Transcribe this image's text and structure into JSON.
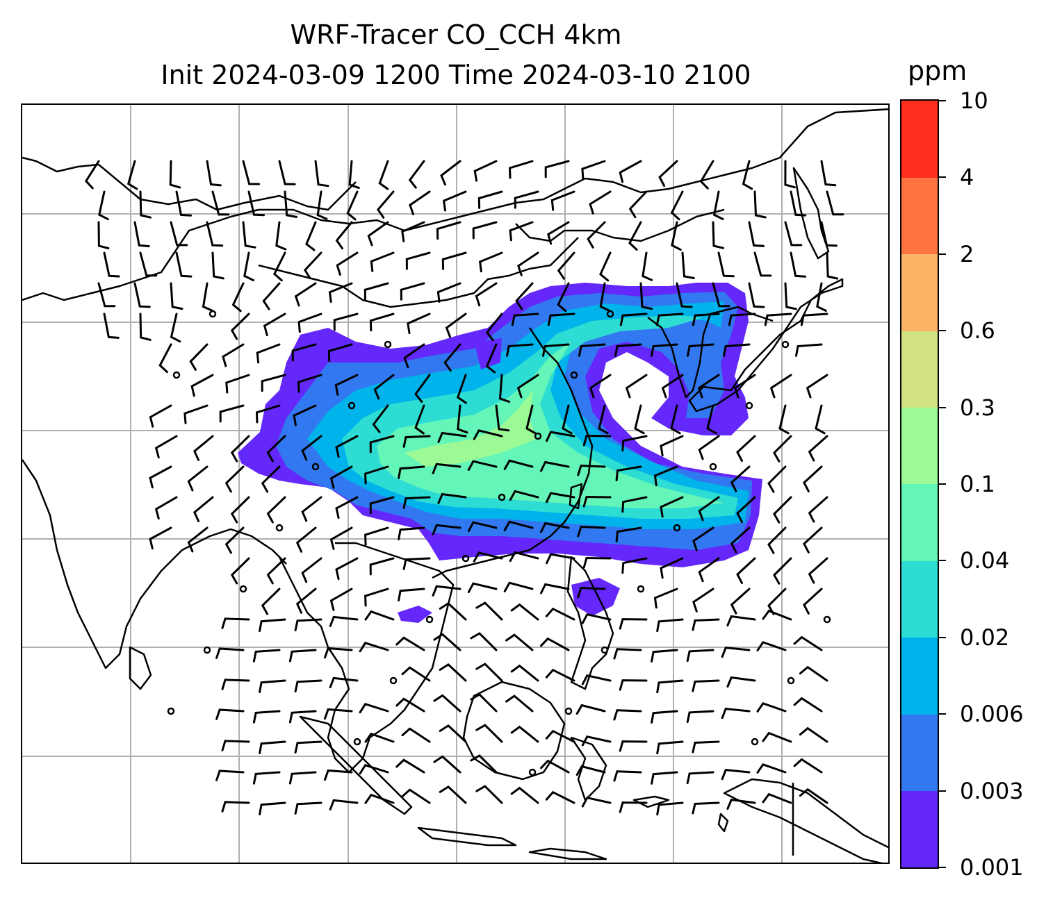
{
  "title": {
    "line1": "WRF-Tracer CO_CCH 4km",
    "line2": "Init 2024-03-09 1200 Time 2024-03-10 2100"
  },
  "colorbar": {
    "unit": "ppm",
    "levels": [
      "0.001",
      "0.003",
      "0.006",
      "0.02",
      "0.04",
      "0.1",
      "0.3",
      "0.6",
      "2",
      "4",
      "10"
    ],
    "colors": [
      "#6428fa",
      "#3278f0",
      "#00b4eb",
      "#2ddcd2",
      "#64f5b9",
      "#9bfa96",
      "#d2e182",
      "#fab464",
      "#ff7341",
      "#ff2d1e"
    ]
  },
  "map": {
    "gridlines": true,
    "gridline_color": "#b0b0b0",
    "coastline_color": "#000000",
    "field_name": "CO_CCH tracer concentration",
    "barbs": "wind barbs"
  }
}
